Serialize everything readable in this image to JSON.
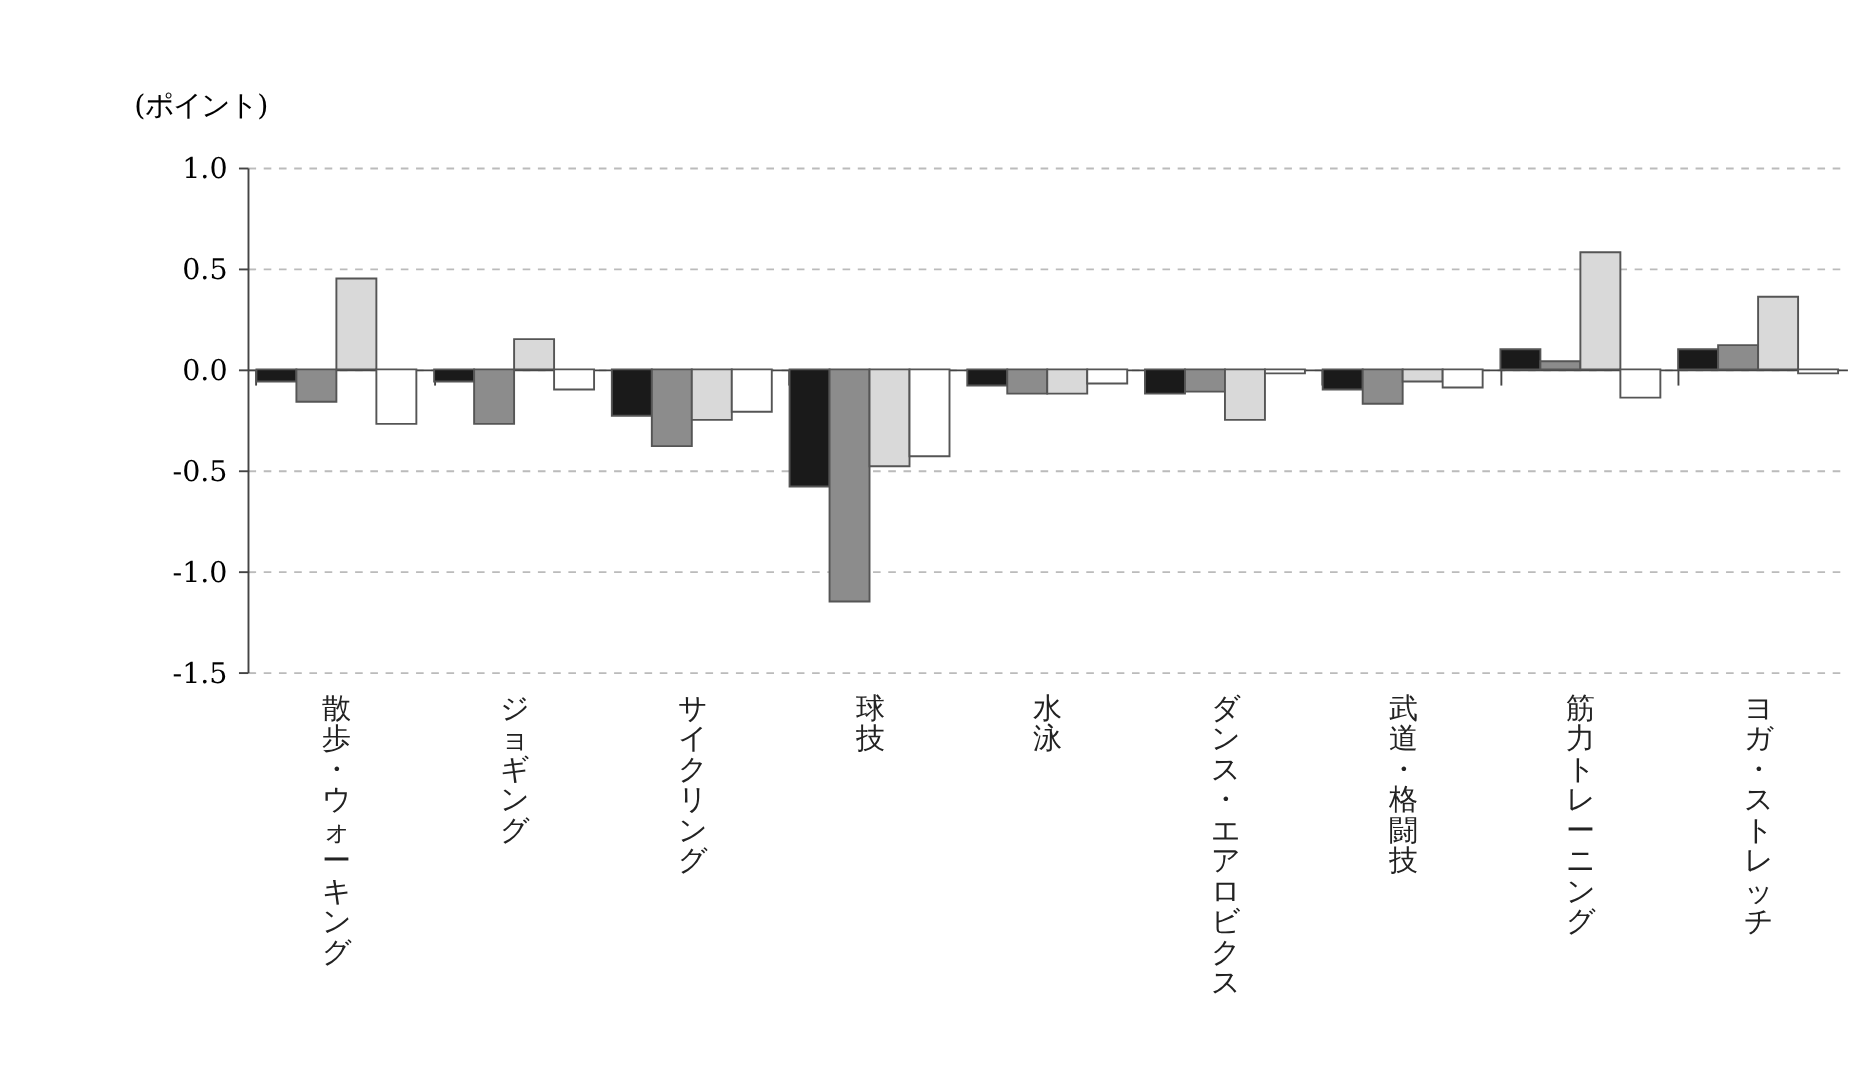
{
  "chart_data": {
    "type": "bar",
    "ylabel": "(ポイント)",
    "categories": [
      "散歩・ウォーキング",
      "ジョギング",
      "サイクリング",
      "球技",
      "水泳",
      "ダンス・エアロビクス",
      "武道・格闘技",
      "筋力トレーニング",
      "ヨガ・ストレッチ"
    ],
    "series": [
      {
        "color": "#1a1a1a",
        "values": [
          -0.06,
          -0.06,
          -0.23,
          -0.58,
          -0.08,
          -0.12,
          -0.1,
          0.1,
          0.1
        ]
      },
      {
        "color": "#8c8c8c",
        "values": [
          -0.16,
          -0.27,
          -0.38,
          -1.15,
          -0.12,
          -0.11,
          -0.17,
          0.04,
          0.12
        ]
      },
      {
        "color": "#d9d9d9",
        "values": [
          0.45,
          0.15,
          -0.25,
          -0.48,
          -0.12,
          -0.25,
          -0.06,
          0.58,
          0.36
        ]
      },
      {
        "color": "#ffffff",
        "values": [
          -0.27,
          -0.1,
          -0.21,
          -0.43,
          -0.07,
          -0.02,
          -0.09,
          -0.14,
          -0.02
        ]
      }
    ],
    "ylim": [
      -1.5,
      1.0
    ],
    "yticks": [
      {
        "value": -1.5,
        "label": "-1.5"
      },
      {
        "value": -1.0,
        "label": "-1.0"
      },
      {
        "value": -0.5,
        "label": "-0.5"
      },
      {
        "value": 0,
        "label": "0.0"
      },
      {
        "value": 0.5,
        "label": "0.5"
      },
      {
        "value": 1.0,
        "label": "1.0"
      }
    ],
    "grid": "y",
    "legend": false
  }
}
